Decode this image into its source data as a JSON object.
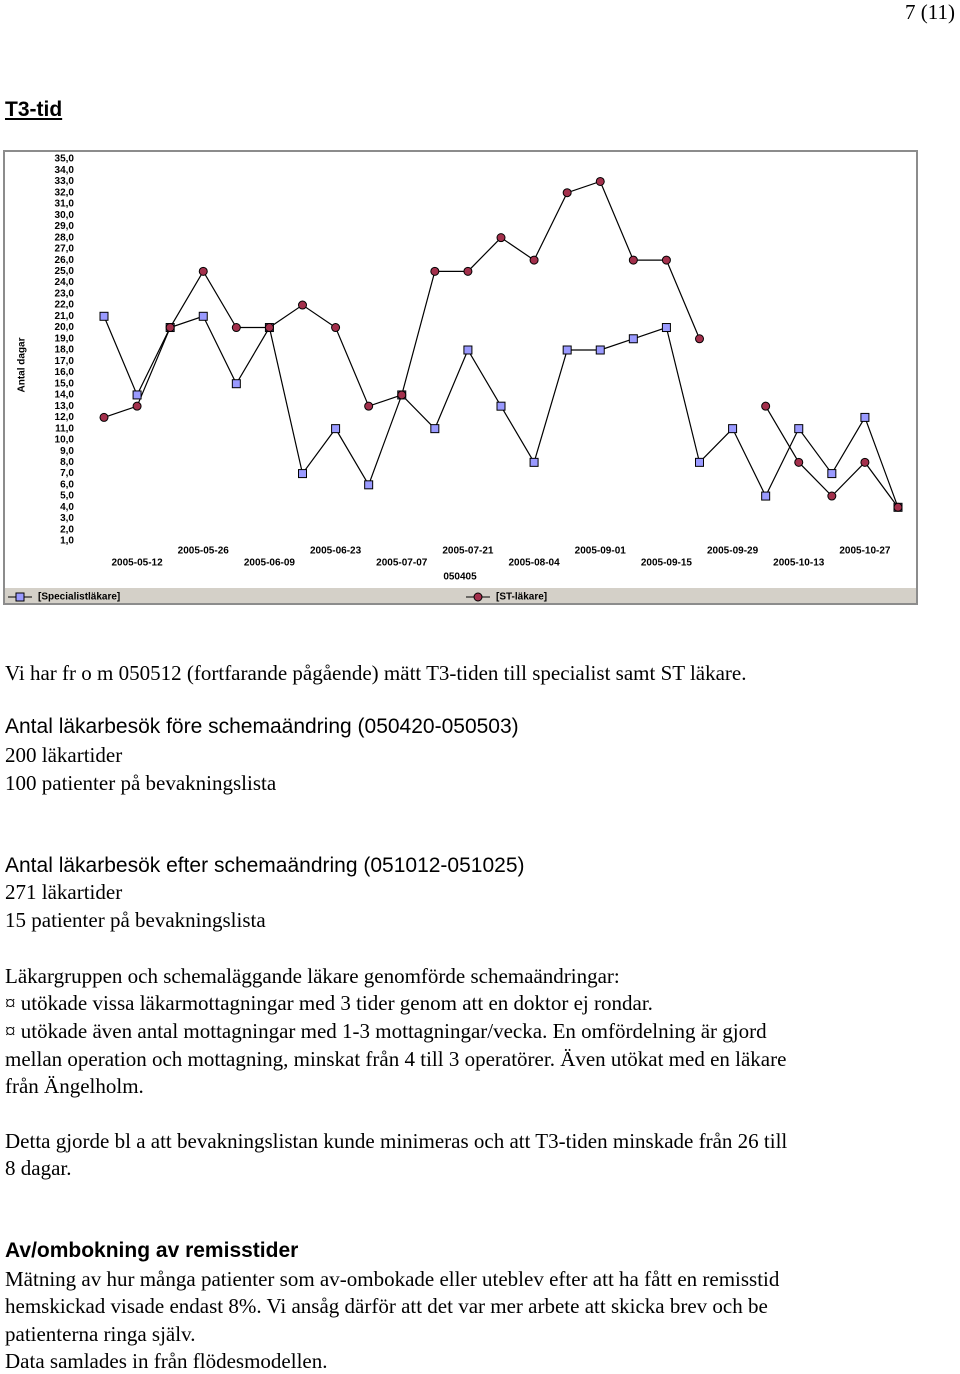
{
  "header": {
    "page_number": "7 (11)"
  },
  "section_title": "T3-tid",
  "chart_data": {
    "type": "line",
    "y_label": "Antal dagar",
    "x_label": "050405",
    "categories": [
      null,
      "2005-05-12",
      null,
      "2005-05-26",
      null,
      "2005-06-09",
      null,
      "2005-06-23",
      null,
      "2005-07-07",
      null,
      "2005-07-21",
      null,
      "2005-08-04",
      null,
      "2005-09-01",
      null,
      "2005-09-15",
      null,
      "2005-09-29",
      null,
      "2005-10-13",
      null,
      "2005-10-27",
      null
    ],
    "series": [
      {
        "name": "[Specialistläkare]",
        "color": "#9a9aff",
        "marker": "square",
        "values": [
          21,
          14,
          20,
          21,
          15,
          20,
          7,
          11,
          6,
          14,
          11,
          18,
          13,
          8,
          18,
          18,
          19,
          20,
          8,
          11,
          5,
          11,
          7,
          12,
          4
        ]
      },
      {
        "name": "[ST-läkare]",
        "color": "#a3304c",
        "marker": "circle",
        "values": [
          12,
          13,
          20,
          25,
          20,
          20,
          22,
          20,
          13,
          14,
          25,
          25,
          28,
          26,
          32,
          33,
          26,
          26,
          19,
          null,
          13,
          8,
          5,
          8,
          4
        ]
      }
    ],
    "ylim": [
      1,
      35
    ],
    "yticks": [
      {
        "value": 1,
        "label": "1,0"
      },
      {
        "value": 2,
        "label": "2,0"
      },
      {
        "value": 3,
        "label": "3,0"
      },
      {
        "value": 4,
        "label": "4,0"
      },
      {
        "value": 5,
        "label": "5,0"
      },
      {
        "value": 6,
        "label": "6,0"
      },
      {
        "value": 7,
        "label": "7,0"
      },
      {
        "value": 8,
        "label": "8,0"
      },
      {
        "value": 9,
        "label": "9,0"
      },
      {
        "value": 10,
        "label": "10,0"
      },
      {
        "value": 11,
        "label": "11,0"
      },
      {
        "value": 12,
        "label": "12,0"
      },
      {
        "value": 13,
        "label": "13,0"
      },
      {
        "value": 14,
        "label": "14,0"
      },
      {
        "value": 15,
        "label": "15,0"
      },
      {
        "value": 16,
        "label": "16,0"
      },
      {
        "value": 17,
        "label": "17,0"
      },
      {
        "value": 18,
        "label": "18,0"
      },
      {
        "value": 19,
        "label": "19,0"
      },
      {
        "value": 20,
        "label": "20,0"
      },
      {
        "value": 21,
        "label": "21,0"
      },
      {
        "value": 22,
        "label": "22,0"
      },
      {
        "value": 23,
        "label": "23,0"
      },
      {
        "value": 24,
        "label": "24,0"
      },
      {
        "value": 25,
        "label": "25,0"
      },
      {
        "value": 26,
        "label": "26,0"
      },
      {
        "value": 27,
        "label": "27,0"
      },
      {
        "value": 28,
        "label": "28,0"
      },
      {
        "value": 29,
        "label": "29,0"
      },
      {
        "value": 30,
        "label": "30,0"
      },
      {
        "value": 31,
        "label": "31,0"
      },
      {
        "value": 32,
        "label": "32,0"
      },
      {
        "value": 33,
        "label": "33,0"
      },
      {
        "value": 34,
        "label": "34,0"
      },
      {
        "value": 35,
        "label": "35,0"
      }
    ],
    "grid": false,
    "legend_position": "bottom"
  },
  "intro": "Vi har fr o m 050512 (fortfarande pågående) mätt T3-tiden till specialist samt ST läkare.",
  "before": {
    "heading": "Antal läkarbesök före schemaändring (050420-050503)",
    "lines": [
      "200 läkartider",
      "100 patienter på bevakningslista"
    ]
  },
  "after": {
    "heading": "Antal läkarbesök efter schemaändring (051012-051025)",
    "lines": [
      "271 läkartider",
      "15 patienter på bevakningslista"
    ]
  },
  "changes": {
    "lines": [
      "Läkargruppen och schemaläggande läkare genomförde schemaändringar:",
      "¤ utökade vissa läkarmottagningar med 3 tider genom att en doktor ej rondar.",
      "¤ utökade även antal mottagningar med 1-3 mottagningar/vecka. En omfördelning är gjord",
      "mellan operation och mottagning, minskat från 4 till 3 operatörer. Även utökat med en läkare",
      "från Ängelholm."
    ]
  },
  "result": {
    "lines": [
      "Detta gjorde bl a att bevakningslistan kunde minimeras och att T3-tiden minskade från 26 till",
      "8 dagar."
    ]
  },
  "rebooking": {
    "heading": "Av/ombokning av remisstider",
    "lines": [
      "Mätning av hur många patienter som av-ombokade eller uteblev efter att ha fått en remisstid",
      "hemskickad visade endast 8%. Vi ansåg därför att det var mer arbete att skicka brev och be",
      "patienterna ringa själv.",
      "Data samlades in från flödesmodellen."
    ]
  }
}
